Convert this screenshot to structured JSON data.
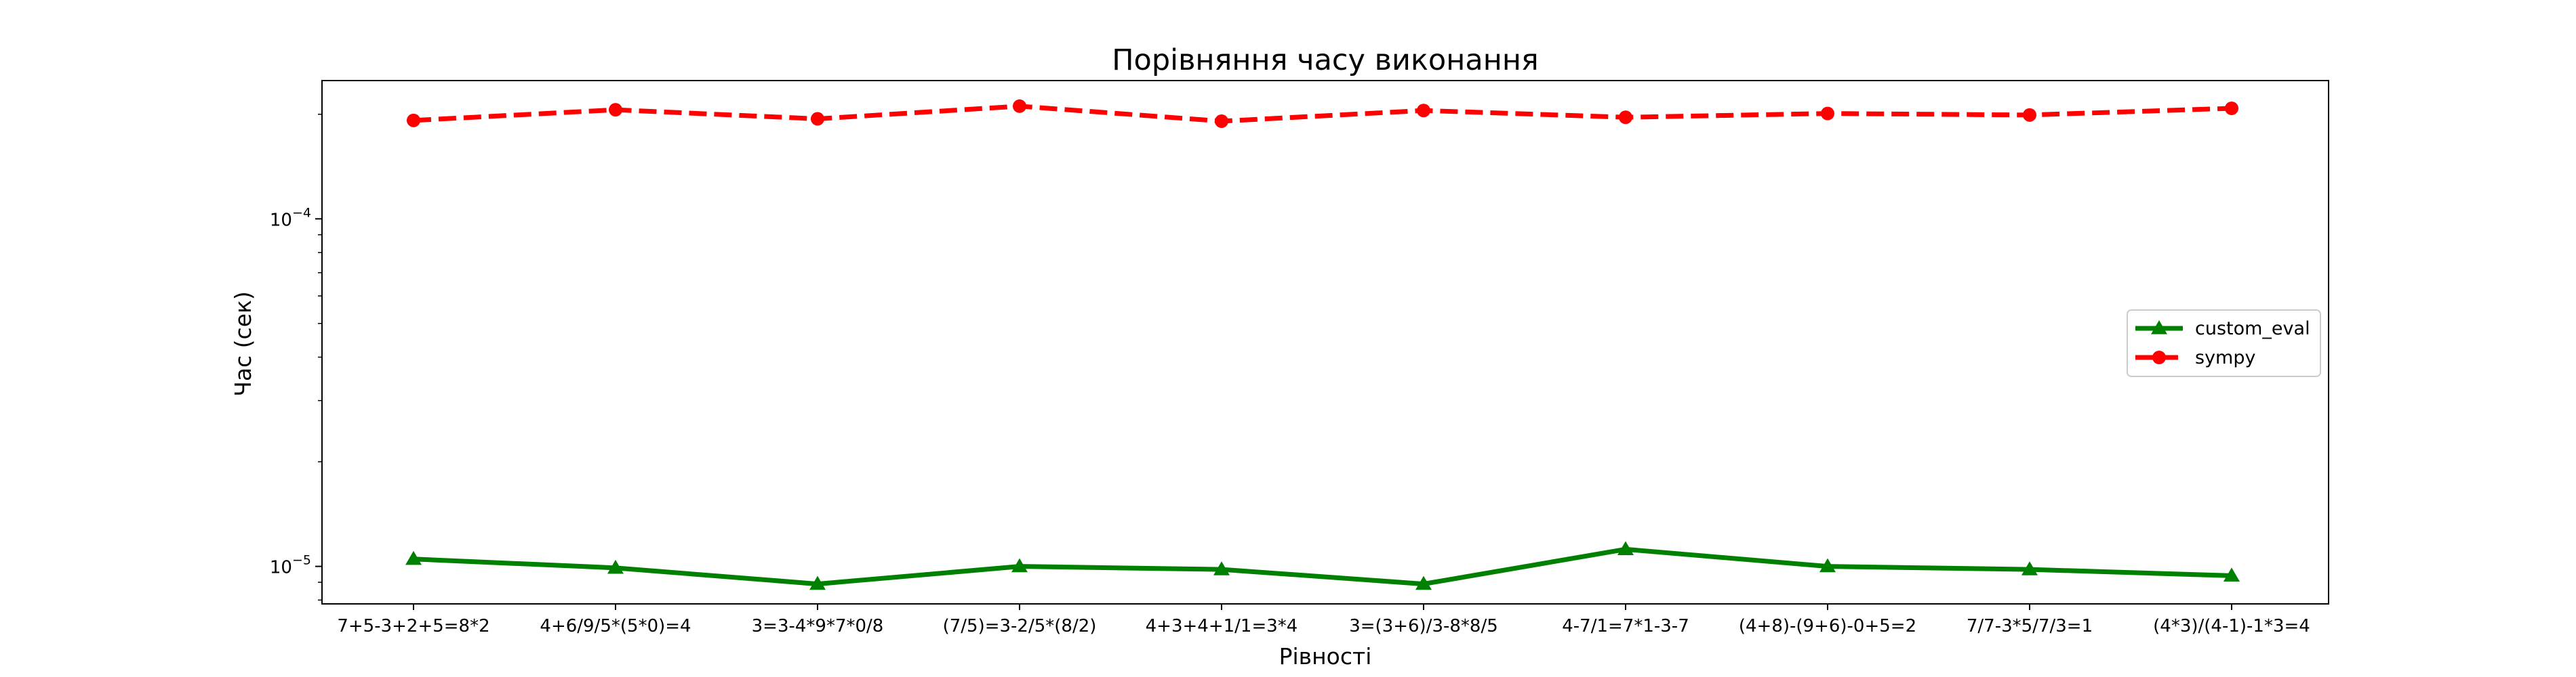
{
  "chart_data": {
    "type": "line",
    "title": "Порівняння часу виконання",
    "xlabel": "Рівності",
    "ylabel": "Час (сек)",
    "yscale": "log",
    "ylim": [
      7.8e-06,
      0.00025
    ],
    "yticks": [
      {
        "value": 1e-05,
        "base": "10",
        "exp": "−5"
      },
      {
        "value": 0.0001,
        "base": "10",
        "exp": "−4"
      }
    ],
    "grid": false,
    "legend_position": "center-right",
    "categories": [
      "7+5-3+2+5=8*2",
      "4+6/9/5*(5*0)=4",
      "3=3-4*9*7*0/8",
      "(7/5)=3-2/5*(8/2)",
      "4+3+4+1/1=3*4",
      "3=(3+6)/3-8*8/5",
      "4-7/1=7*1-3-7",
      "(4+8)-(9+6)-0+5=2",
      "7/7-3*5/7/3=1",
      "(4*3)/(4-1)-1*3=4"
    ],
    "series": [
      {
        "name": "custom_eval",
        "color": "#008000",
        "marker": "triangle",
        "linestyle": "solid",
        "values": [
          1.05e-05,
          9.9e-06,
          8.9e-06,
          1e-05,
          9.8e-06,
          8.9e-06,
          1.12e-05,
          1e-05,
          9.8e-06,
          9.4e-06
        ]
      },
      {
        "name": "sympy",
        "color": "#ff0000",
        "marker": "circle",
        "linestyle": "dashed",
        "values": [
          0.000192,
          0.000206,
          0.000194,
          0.000211,
          0.000191,
          0.000205,
          0.000196,
          0.000201,
          0.000199,
          0.000208
        ]
      }
    ]
  }
}
